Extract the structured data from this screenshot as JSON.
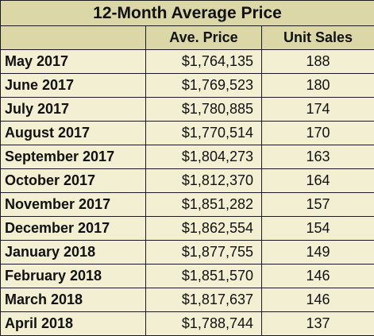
{
  "chart_data": {
    "type": "table",
    "title": "12-Month Average Price",
    "columns": [
      "",
      "Ave. Price",
      "Unit Sales"
    ],
    "rows": [
      {
        "month": "May 2017",
        "price": "$1,764,135",
        "units": "188"
      },
      {
        "month": "June 2017",
        "price": "$1,769,523",
        "units": "180"
      },
      {
        "month": "July 2017",
        "price": "$1,780,885",
        "units": "174"
      },
      {
        "month": "August 2017",
        "price": "$1,770,514",
        "units": "170"
      },
      {
        "month": "September 2017",
        "price": "$1,804,273",
        "units": "163"
      },
      {
        "month": "October 2017",
        "price": "$1,812,370",
        "units": "164"
      },
      {
        "month": "November 2017",
        "price": "$1,851,282",
        "units": "157"
      },
      {
        "month": "December 2017",
        "price": "$1,862,554",
        "units": "154"
      },
      {
        "month": "January 2018",
        "price": "$1,877,755",
        "units": "149"
      },
      {
        "month": "February 2018",
        "price": "$1,851,570",
        "units": "146"
      },
      {
        "month": "March 2018",
        "price": "$1,817,637",
        "units": "146"
      },
      {
        "month": "April 2018",
        "price": "$1,788,744",
        "units": "137"
      }
    ]
  },
  "colors": {
    "header_bg": "#dcd7a7",
    "body_bg": "#f2efd2",
    "border": "#1a1a1a",
    "text": "#111111"
  }
}
